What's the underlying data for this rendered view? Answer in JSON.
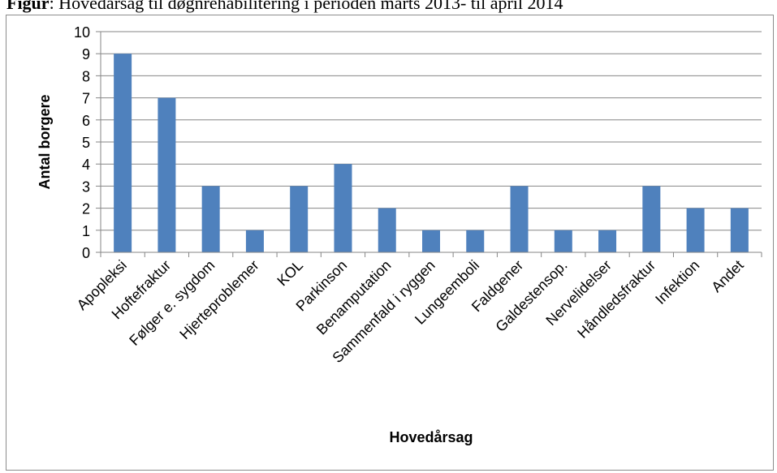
{
  "header": {
    "label": "Figur",
    "text": ": Hovedårsag til døgnrehabilitering i perioden marts 2013- til april 2014"
  },
  "colors": {
    "bar": "#4f81bd",
    "grid": "#868686",
    "axis": "#868686"
  },
  "chart_data": {
    "type": "bar",
    "categories": [
      "Apopleksi",
      "Hoftefraktur",
      "Følger e. sygdom",
      "Hjerteproblemer",
      "KOL",
      "Parkinson",
      "Benamputation",
      "Sammenfald i ryggen",
      "Lungeemboli",
      "Faldgener",
      "Galdestensop.",
      "Nervelidelser",
      "Håndledsfraktur",
      "Infektion",
      "Andet"
    ],
    "values": [
      9,
      7,
      3,
      1,
      3,
      4,
      2,
      1,
      1,
      3,
      1,
      1,
      3,
      2,
      2
    ],
    "xlabel": "Hovedårsag",
    "ylabel": "Antal borgere",
    "ylim": [
      0,
      10
    ],
    "yticks": [
      0,
      1,
      2,
      3,
      4,
      5,
      6,
      7,
      8,
      9,
      10
    ],
    "grid": true,
    "legend": "none"
  }
}
